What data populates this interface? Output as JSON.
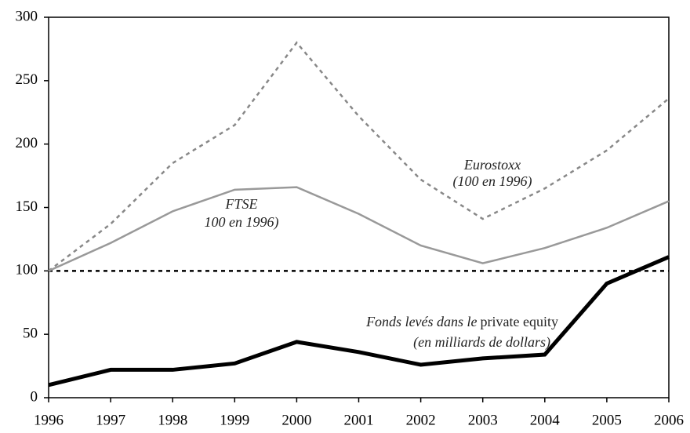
{
  "chart_data": {
    "type": "line",
    "x": [
      1996,
      1997,
      1998,
      1999,
      2000,
      2001,
      2002,
      2003,
      2004,
      2005,
      2006
    ],
    "series": [
      {
        "color": "#888888",
        "dash": "dotted",
        "width": 2.5,
        "values": [
          100,
          137,
          185,
          215,
          280,
          222,
          172,
          141,
          165,
          195,
          236
        ]
      },
      {
        "color": "#999999",
        "dash": "solid",
        "width": 2.5,
        "values": [
          100,
          122,
          147,
          164,
          166,
          145,
          120,
          106,
          118,
          134,
          155
        ]
      },
      {
        "color": "#000000",
        "dash": "solid",
        "width": 5,
        "values": [
          10,
          22,
          22,
          27,
          44,
          36,
          26,
          31,
          34,
          90,
          111
        ]
      }
    ],
    "reference_line": 100,
    "xlim": [
      1996,
      2006
    ],
    "xticks": [
      1996,
      1997,
      1998,
      1999,
      2000,
      2001,
      2002,
      2003,
      2004,
      2005,
      2006
    ],
    "ylim": [
      0,
      300
    ],
    "yticks": [
      0,
      50,
      100,
      150,
      200,
      250,
      300
    ],
    "annotations": [
      {
        "lines": [
          "Eurostoxx",
          "(100 en 1996)"
        ]
      },
      {
        "lines": [
          "FTSE",
          "100 en 1996)"
        ]
      },
      {
        "lines": [
          [
            "Fonds levés dans le",
            "private equity"
          ],
          "(en milliards de dollars)"
        ]
      }
    ]
  }
}
